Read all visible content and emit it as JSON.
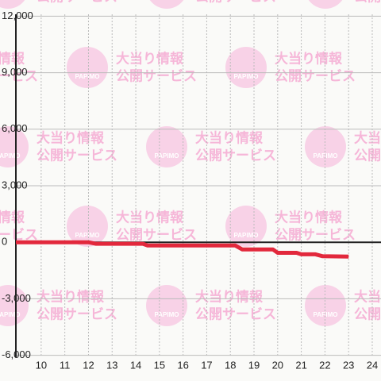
{
  "chart_data": {
    "type": "line",
    "x": [
      8.93,
      12.0,
      12.3,
      14.3,
      14.5,
      18.2,
      18.5,
      19.8,
      20.0,
      20.8,
      21.0,
      21.6,
      21.9,
      23.0
    ],
    "values": [
      0,
      0,
      -80,
      -80,
      -170,
      -170,
      -380,
      -380,
      -560,
      -560,
      -640,
      -640,
      -740,
      -760
    ],
    "color": "#e2283c",
    "xlim": [
      8.93,
      24.37
    ],
    "xticks": [
      10,
      11,
      12,
      13,
      14,
      15,
      16,
      17,
      18,
      19,
      20,
      21,
      22,
      23,
      24
    ],
    "ylim": [
      -6100,
      12100
    ],
    "yticks": [
      {
        "value": 12000,
        "label": "12,000"
      },
      {
        "value": 9000,
        "label": "9,000"
      },
      {
        "value": 6000,
        "label": "6,000"
      },
      {
        "value": 3000,
        "label": "3,000"
      },
      0,
      {
        "value": -3000,
        "label": "-3,000"
      },
      {
        "value": -6000,
        "label": "-6,000"
      }
    ],
    "grid": true
  },
  "watermark": {
    "badge": "PAPIMO",
    "line1": "大当り情報",
    "line2": "公開サービス"
  }
}
